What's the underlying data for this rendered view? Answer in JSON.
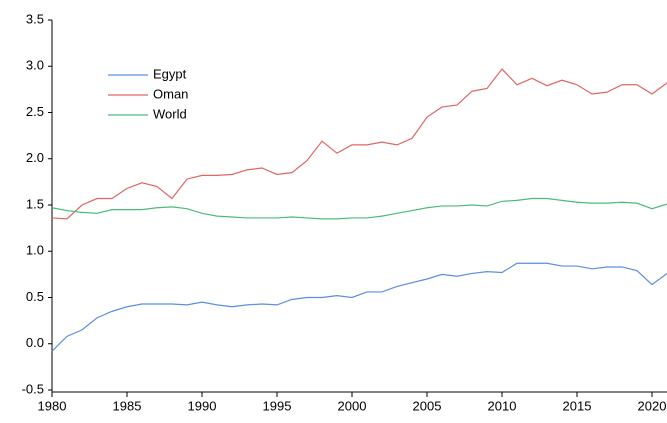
{
  "chart_data": {
    "type": "line",
    "x": [
      1980,
      1981,
      1982,
      1983,
      1984,
      1985,
      1986,
      1987,
      1988,
      1989,
      1990,
      1991,
      1992,
      1993,
      1994,
      1995,
      1996,
      1997,
      1998,
      1999,
      2000,
      2001,
      2002,
      2003,
      2004,
      2005,
      2006,
      2007,
      2008,
      2009,
      2010,
      2011,
      2012,
      2013,
      2014,
      2015,
      2016,
      2017,
      2018,
      2019,
      2020,
      2021
    ],
    "series": [
      {
        "name": "Egypt",
        "color": "#5b8ee6",
        "values": [
          -0.08,
          0.08,
          0.15,
          0.28,
          0.35,
          0.4,
          0.43,
          0.43,
          0.43,
          0.42,
          0.45,
          0.42,
          0.4,
          0.42,
          0.43,
          0.42,
          0.48,
          0.5,
          0.5,
          0.52,
          0.5,
          0.56,
          0.56,
          0.62,
          0.66,
          0.7,
          0.75,
          0.73,
          0.76,
          0.78,
          0.77,
          0.87,
          0.87,
          0.87,
          0.84,
          0.84,
          0.81,
          0.83,
          0.83,
          0.79,
          0.64,
          0.76
        ]
      },
      {
        "name": "Oman",
        "color": "#e06666",
        "values": [
          1.36,
          1.35,
          1.5,
          1.57,
          1.57,
          1.68,
          1.74,
          1.7,
          1.57,
          1.78,
          1.82,
          1.82,
          1.83,
          1.88,
          1.9,
          1.83,
          1.85,
          1.98,
          2.19,
          2.06,
          2.15,
          2.15,
          2.18,
          2.15,
          2.22,
          2.45,
          2.56,
          2.58,
          2.73,
          2.76,
          2.97,
          2.8,
          2.87,
          2.79,
          2.85,
          2.8,
          2.7,
          2.72,
          2.8,
          2.8,
          2.7,
          2.82
        ]
      },
      {
        "name": "World",
        "color": "#4cbb7a",
        "values": [
          1.47,
          1.44,
          1.42,
          1.41,
          1.45,
          1.45,
          1.45,
          1.47,
          1.48,
          1.46,
          1.41,
          1.38,
          1.37,
          1.36,
          1.36,
          1.36,
          1.37,
          1.36,
          1.35,
          1.35,
          1.36,
          1.36,
          1.38,
          1.41,
          1.44,
          1.47,
          1.49,
          1.49,
          1.5,
          1.49,
          1.54,
          1.55,
          1.57,
          1.57,
          1.55,
          1.53,
          1.52,
          1.52,
          1.53,
          1.52,
          1.46,
          1.51
        ]
      }
    ],
    "xlim": [
      1980,
      2021
    ],
    "xticks": [
      1980,
      1985,
      1990,
      1995,
      2000,
      2005,
      2010,
      2015,
      2020
    ],
    "ylim": [
      -0.5,
      3.5
    ],
    "yticks": [
      -0.5,
      {
        "value": 0,
        "label": "0.0"
      },
      0.5,
      {
        "value": 1,
        "label": "1.0"
      },
      1.5,
      {
        "value": 2,
        "label": "2.0"
      },
      2.5,
      {
        "value": 3,
        "label": "3.0"
      },
      3.5
    ],
    "legend": "upper left"
  }
}
